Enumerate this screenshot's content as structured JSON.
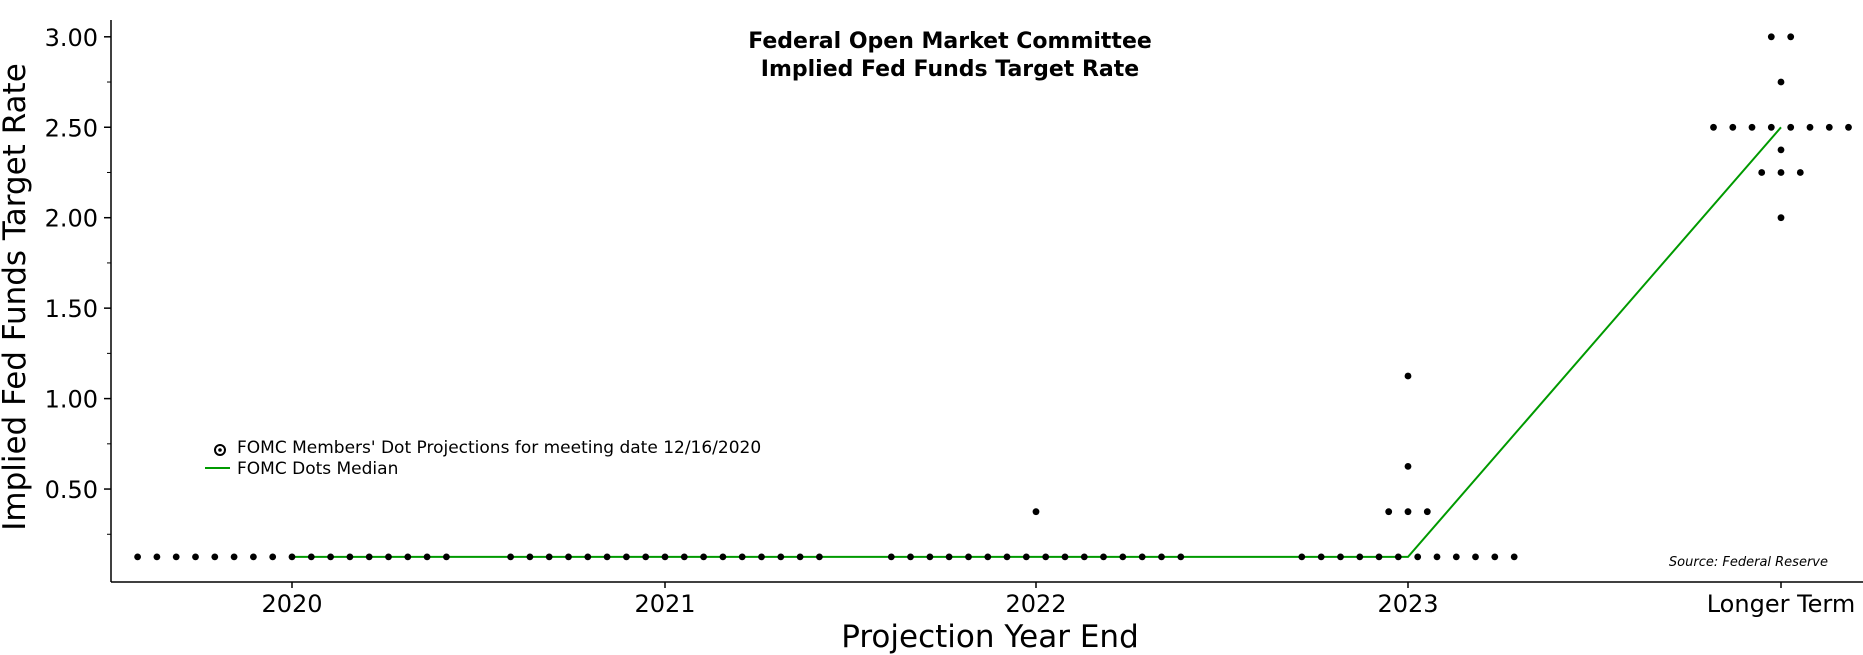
{
  "chart_data": {
    "type": "scatter",
    "title": "Federal Open Market Committee",
    "subtitle": "Implied Fed Funds Target Rate",
    "xlabel": "Projection Year End",
    "ylabel": "Implied Fed Funds Target Rate",
    "source": "Source: Federal Reserve",
    "categories": [
      "2020",
      "2021",
      "2022",
      "2023",
      "Longer Term"
    ],
    "ylim": [
      0,
      3.0
    ],
    "yticks": [
      "0.50",
      "1.00",
      "1.50",
      "2.00",
      "2.50",
      "3.00"
    ],
    "grid": false,
    "legend_position": "left",
    "colors": {
      "dots": "#000000",
      "median": "#009a00",
      "axis": "#000000"
    },
    "series": [
      {
        "name": "FOMC Members' Dot Projections for meeting date 12/16/2020",
        "kind": "dots",
        "points_by_category": [
          {
            "category": "2020",
            "values": [
              [
                0.125,
                17
              ]
            ]
          },
          {
            "category": "2021",
            "values": [
              [
                0.125,
                17
              ]
            ]
          },
          {
            "category": "2022",
            "values": [
              [
                0.375,
                1
              ],
              [
                0.125,
                16
              ]
            ]
          },
          {
            "category": "2023",
            "values": [
              [
                1.125,
                1
              ],
              [
                0.625,
                1
              ],
              [
                0.375,
                3
              ],
              [
                0.125,
                12
              ]
            ]
          },
          {
            "category": "Longer Term",
            "values": [
              [
                3.0,
                2
              ],
              [
                2.75,
                1
              ],
              [
                2.5,
                8
              ],
              [
                2.375,
                1
              ],
              [
                2.25,
                3
              ],
              [
                2.0,
                1
              ]
            ]
          }
        ]
      },
      {
        "name": "FOMC Dots Median",
        "kind": "line",
        "values": [
          0.125,
          0.125,
          0.125,
          0.125,
          2.5
        ]
      }
    ]
  }
}
